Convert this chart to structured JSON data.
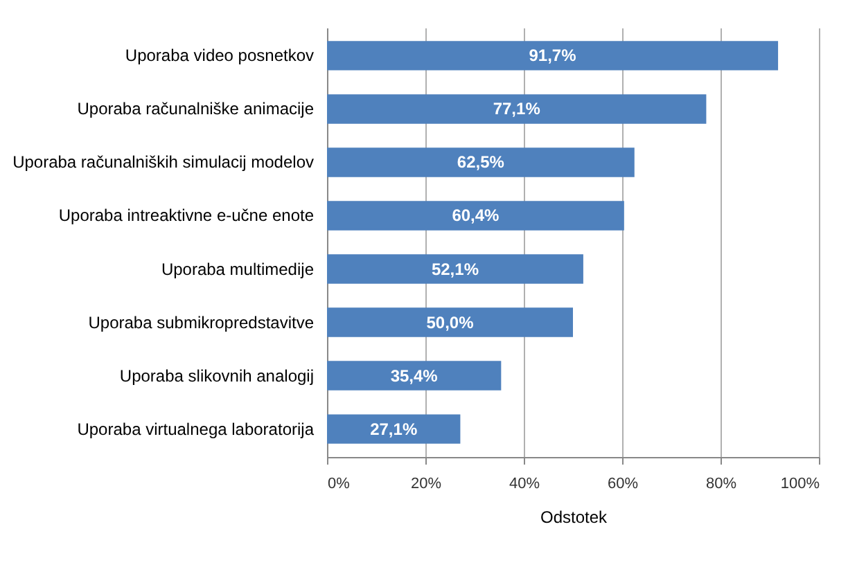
{
  "chart_data": {
    "type": "bar",
    "orientation": "horizontal",
    "xlabel": "Odstotek",
    "categories": [
      "Uporaba video posnetkov",
      "Uporaba računalniške animacije",
      "Uporaba računalniških simulacij modelov",
      "Uporaba intreaktivne e-učne enote",
      "Uporaba multimedije",
      "Uporaba submikropredstavitve",
      "Uporaba slikovnih analogij",
      "Uporaba virtualnega laboratorija"
    ],
    "values": [
      91.7,
      77.1,
      62.5,
      60.4,
      52.1,
      50.0,
      35.4,
      27.1
    ],
    "value_labels": [
      "91,7%",
      "77,1%",
      "62,5%",
      "60,4%",
      "52,1%",
      "50,0%",
      "35,4%",
      "27,1%"
    ],
    "color": "#4f81bd",
    "xlim": [
      0,
      100
    ],
    "xticks": [
      {
        "value": 0,
        "label": "0%"
      },
      {
        "value": 20,
        "label": "20%"
      },
      {
        "value": 40,
        "label": "40%"
      },
      {
        "value": 60,
        "label": "60%"
      },
      {
        "value": 80,
        "label": "80%"
      },
      {
        "value": 100,
        "label": "100%"
      }
    ],
    "grid": "x"
  }
}
